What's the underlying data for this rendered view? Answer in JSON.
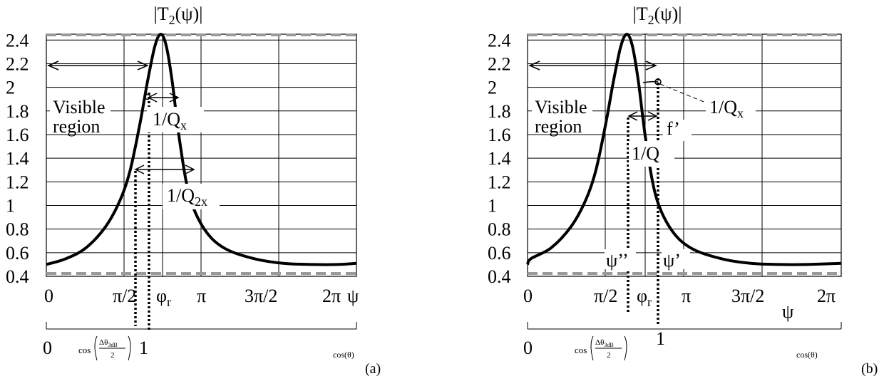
{
  "chart_data": [
    {
      "type": "line",
      "panel": "(a)",
      "title": "|T2(ψ)|",
      "xlabel": "ψ",
      "ylim": [
        0.4,
        2.45
      ],
      "xlim": [
        0,
        6.2832
      ],
      "y_ticks": [
        "2.4",
        "2.2",
        "2",
        "1.8",
        "1.6",
        "1.4",
        "1.2",
        "1",
        "0.8",
        "0.6",
        "0.4"
      ],
      "x_ticks": [
        "0",
        "π/2",
        "φr",
        "π",
        "3π/2",
        "2π"
      ],
      "series": [
        {
          "x": [
            0,
            0.4,
            0.8,
            1.2,
            1.5,
            1.7,
            1.9,
            2.05,
            2.2,
            2.32,
            2.43,
            2.55,
            2.7,
            2.9,
            3.2,
            3.6,
            4.2,
            4.8,
            5.4,
            5.9,
            6.2832
          ],
          "values": [
            0.5,
            0.55,
            0.64,
            0.82,
            1.05,
            1.3,
            1.7,
            2.05,
            2.35,
            2.45,
            2.35,
            2.05,
            1.55,
            1.08,
            0.8,
            0.64,
            0.55,
            0.51,
            0.5,
            0.5,
            0.51
          ]
        }
      ],
      "reference_lines": {
        "y_max": 2.42,
        "y_min": 0.49
      },
      "annotations": [
        "Visible",
        "region",
        "1/Qx",
        "1/Q2x"
      ],
      "cos_axis": {
        "label": "cos(θ)",
        "ticks": [
          "0",
          "cos(Δθ3dB/2)",
          "1"
        ]
      }
    },
    {
      "type": "line",
      "panel": "(b)",
      "title": "|T2(ψ)|",
      "xlabel": "ψ",
      "ylim": [
        0.4,
        2.45
      ],
      "xlim": [
        0,
        6.2832
      ],
      "y_ticks": [
        "2.4",
        "2.2",
        "2",
        "1.8",
        "1.6",
        "1.4",
        "1.2",
        "1",
        "0.8",
        "0.6",
        "0.4"
      ],
      "x_ticks": [
        "0",
        "π/2",
        "φr",
        "π",
        "3π/2",
        "2π"
      ],
      "series": [
        {
          "x": [
            0,
            0.4,
            0.8,
            1.2,
            1.5,
            1.7,
            1.9,
            2.05,
            2.2,
            2.32,
            2.43,
            2.55,
            2.7,
            2.9,
            3.2,
            3.6,
            4.2,
            4.8,
            5.4,
            5.9,
            6.2832
          ],
          "values": [
            0.5,
            0.55,
            0.64,
            0.82,
            1.05,
            1.3,
            1.7,
            2.05,
            2.35,
            2.45,
            2.35,
            2.05,
            1.55,
            1.08,
            0.8,
            0.64,
            0.55,
            0.51,
            0.5,
            0.5,
            0.51
          ]
        }
      ],
      "reference_lines": {
        "y_max": 2.42,
        "y_min": 0.49
      },
      "annotations": [
        "Visible",
        "region",
        "1/Qx",
        "1/Q",
        "f'",
        "ψ''",
        "ψ'"
      ],
      "cos_axis": {
        "label": "cos(θ)",
        "ticks": [
          "0",
          "cos(Δθ3dB/2)",
          "1"
        ]
      }
    }
  ],
  "text": {
    "panel_a": "(a)",
    "panel_b": "(b)",
    "title_a": "|T",
    "title_b": "|T",
    "title_sub": "2",
    "title_tail": "(ψ)|",
    "visible": "Visible",
    "region": "region",
    "one_over_q": "1/Q",
    "sub_x": "x",
    "sub_2x": "2x",
    "fprime": "f’",
    "psi_dprime": "ψ’’",
    "psi_prime": "ψ’",
    "phi_r": "φ",
    "sub_r": "r",
    "psi": "ψ",
    "cos_theta": "cos(θ)",
    "cos_label": "cos",
    "delta_theta": "Δθ",
    "sub_3db": "3dB",
    "two": "2",
    "zero": "0",
    "one": "1",
    "x_ticks": [
      "0",
      "π/2",
      "π",
      "3π/2",
      "2π"
    ]
  }
}
